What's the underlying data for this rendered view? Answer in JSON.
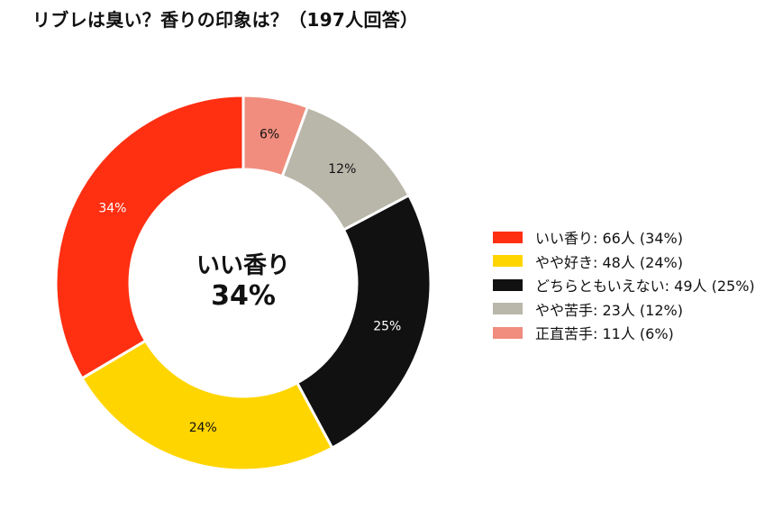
{
  "title": "リブレは臭い？香りの印象は？（197人回答）",
  "center": {
    "category": "いい香り",
    "percent": "34%"
  },
  "chart_data": {
    "type": "pie",
    "donut": true,
    "title": "リブレは臭い？香りの印象は？（197人回答）",
    "total_respondents": 197,
    "categories": [
      "いい香り",
      "やや好き",
      "どちらともいえない",
      "やや苦手",
      "正直苦手"
    ],
    "values": [
      66,
      48,
      49,
      23,
      11
    ],
    "percentages": [
      34,
      24,
      25,
      12,
      6
    ],
    "slice_labels": [
      "34%",
      "24%",
      "25%",
      "12%",
      "6%"
    ],
    "legend_labels": [
      "いい香り:  66人 (34%)",
      "やや好き:  48人 (24%)",
      "どちらともいえない:  49人 (25%)",
      "やや苦手:  23人 (12%)",
      "正直苦手:  11人 (6%)"
    ],
    "colors": [
      "#ff2f12",
      "#ffd500",
      "#111111",
      "#b9b6aa",
      "#f08d7e"
    ],
    "label_colors": [
      "#ffffff",
      "#111111",
      "#ffffff",
      "#111111",
      "#111111"
    ],
    "drawing_order": [
      4,
      3,
      2,
      1,
      0
    ],
    "start_angle": "12 o'clock",
    "direction": "clockwise",
    "legend_position": "right"
  }
}
